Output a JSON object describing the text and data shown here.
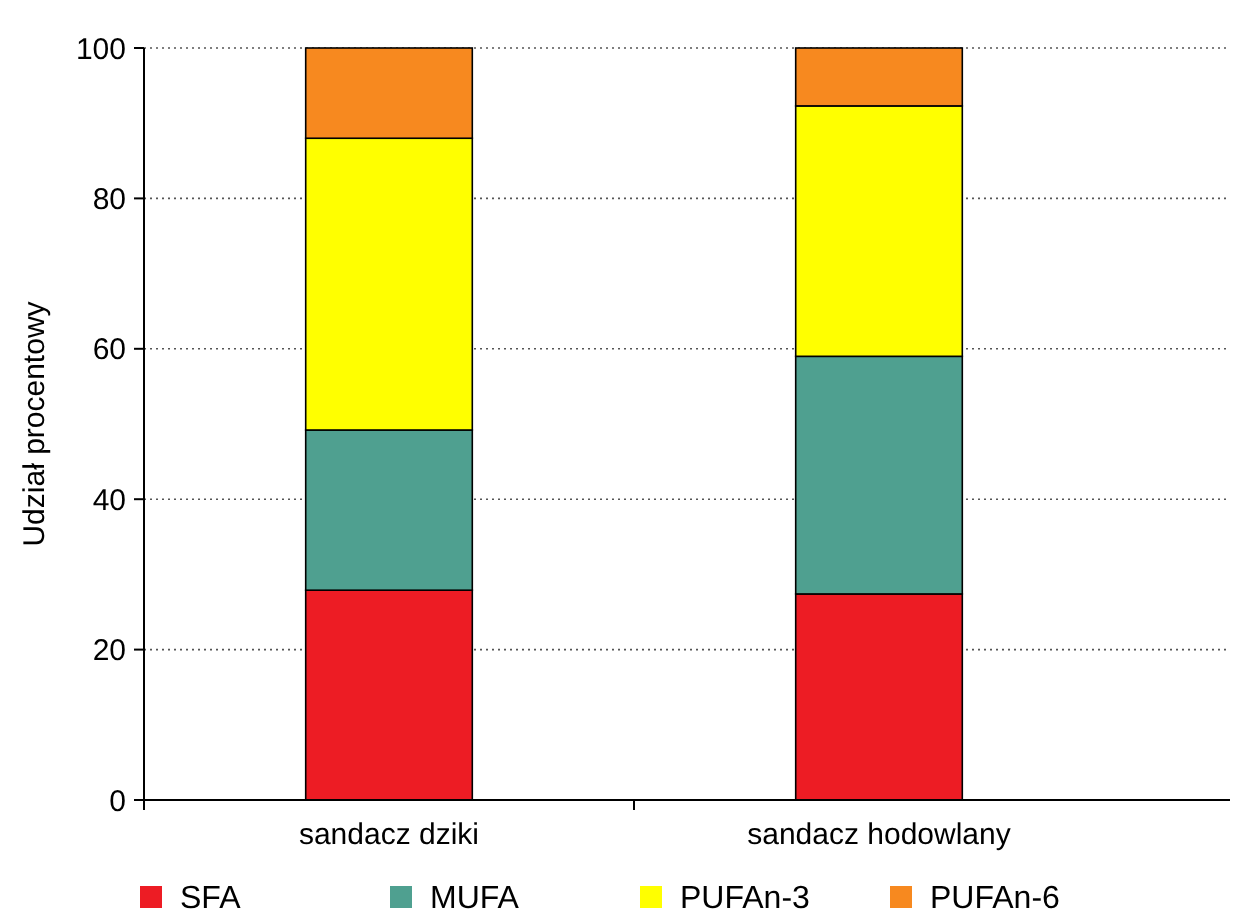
{
  "chart_data": {
    "type": "bar",
    "stacked": true,
    "ylabel": "Udział procentowy",
    "categories": [
      "sandacz dziki",
      "sandacz hodowlany"
    ],
    "series": [
      {
        "name": "SFA",
        "color": "#ed1c24",
        "values": [
          27.9,
          27.4
        ]
      },
      {
        "name": "MUFA",
        "color": "#4fa090",
        "values": [
          21.3,
          31.6
        ]
      },
      {
        "name": "PUFAn-3",
        "color": "#ffff00",
        "values": [
          38.8,
          33.3
        ]
      },
      {
        "name": "PUFAn-6",
        "color": "#f7891f",
        "values": [
          12.0,
          7.7
        ]
      }
    ],
    "ylim": [
      0,
      100
    ],
    "yticks": [
      0,
      20,
      40,
      60,
      80,
      100
    ],
    "grid": "y",
    "legend": "bottom"
  }
}
